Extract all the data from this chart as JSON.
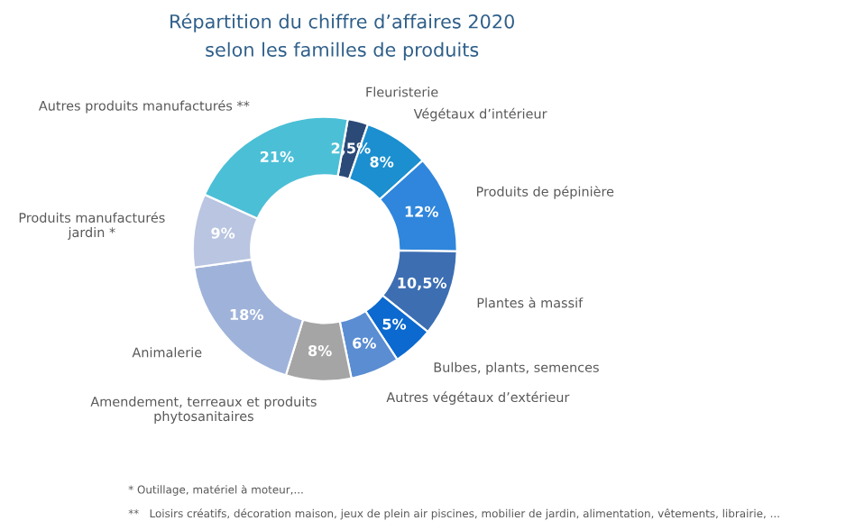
{
  "chart_data": {
    "type": "donut",
    "title": "Répartition du chiffre d’affaires 2020\nselon les familles de produits",
    "categories": [
      "Fleuristerie",
      "Végétaux d’intérieur",
      "Produits de pépinière",
      "Plantes à massif",
      "Bulbes, plants, semences",
      "Autres végétaux d’extérieur",
      "Amendement, terreaux et produits\nphytosanitaires",
      "Animalerie",
      "Produits manufacturés\njardin *",
      "Autres produits manufacturés **"
    ],
    "values": [
      2.5,
      8,
      12,
      10.5,
      5,
      6,
      8,
      18,
      9,
      21
    ],
    "value_labels": [
      "2,5%",
      "8%",
      "12%",
      "10,5%",
      "5%",
      "6%",
      "8%",
      "18%",
      "9%",
      "21%"
    ],
    "colors": [
      "#2b4a78",
      "#1b8fcf",
      "#2f86dc",
      "#3d6eb2",
      "#0b69cf",
      "#5a8dd2",
      "#a5a5a5",
      "#9fb3da",
      "#b9c5e1",
      "#4bbfd6"
    ],
    "annotations": [
      "* Outillage, matériel à moteur,...",
      "**   Loisirs créatifs, décoration maison, jeux de plein air piscines, mobilier de jardin, alimentation, vêtements, librairie, ..."
    ]
  }
}
